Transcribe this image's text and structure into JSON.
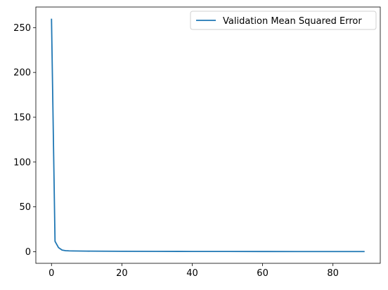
{
  "chart_data": {
    "type": "line",
    "title": "",
    "xlabel": "",
    "ylabel": "",
    "xlim": [
      -4.45,
      93.45
    ],
    "ylim": [
      -13,
      273
    ],
    "x_ticks": [
      0,
      20,
      40,
      60,
      80
    ],
    "y_ticks": [
      0,
      50,
      100,
      150,
      200,
      250
    ],
    "grid": false,
    "legend": "upper right",
    "series": [
      {
        "name": "Validation Mean Squared Error",
        "color": "#1f77b4",
        "x": [
          0,
          1,
          2,
          3,
          4,
          5,
          6,
          8,
          10,
          15,
          20,
          30,
          40,
          50,
          60,
          70,
          80,
          89
        ],
        "y": [
          260,
          11.5,
          4.5,
          1.8,
          1.1,
          0.9,
          0.8,
          0.7,
          0.6,
          0.5,
          0.4,
          0.3,
          0.25,
          0.2,
          0.18,
          0.15,
          0.12,
          0.1
        ]
      }
    ]
  }
}
